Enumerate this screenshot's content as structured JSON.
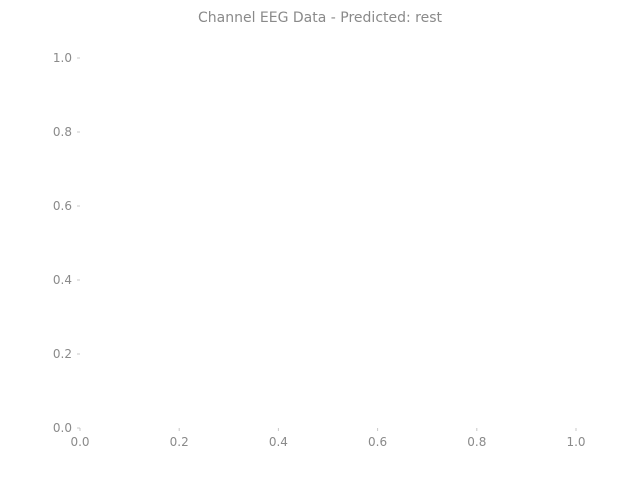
{
  "chart_data": {
    "type": "line",
    "title": "Channel EEG Data - Predicted: rest",
    "xlabel": "",
    "ylabel": "",
    "xlim": [
      0.0,
      1.0
    ],
    "ylim": [
      0.0,
      1.0
    ],
    "x_ticks": [
      "0.0",
      "0.2",
      "0.4",
      "0.6",
      "0.8",
      "1.0"
    ],
    "y_ticks": [
      "0.0",
      "0.2",
      "0.4",
      "0.6",
      "0.8",
      "1.0"
    ],
    "grid": false,
    "series": []
  },
  "colors": {
    "text": "#8a8a8a",
    "tick": "#c8c8c8",
    "background": "#ffffff"
  }
}
